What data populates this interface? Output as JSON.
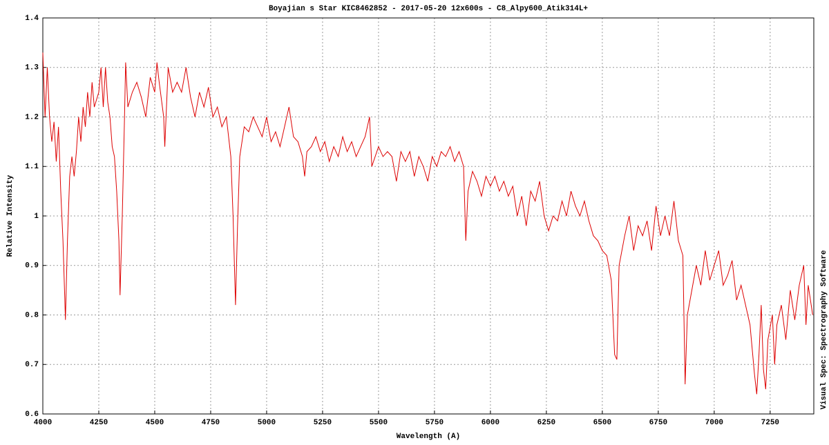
{
  "chart_data": {
    "type": "line",
    "title": "Boyajian s Star  KIC8462852 - 2017-05-20 12x600s - C8_Alpy600_Atik314L+",
    "x_label": "Wavelength (A)",
    "y_label": "Relative Intensity",
    "side_note": "Visual Spec: Spectrography Software",
    "color": "#dd0000",
    "grid": true,
    "xlim": [
      4000,
      7445
    ],
    "ylim": [
      0.6,
      1.4
    ],
    "xticks": [
      4000,
      4250,
      4500,
      4750,
      5000,
      5250,
      5500,
      5750,
      6000,
      6250,
      6500,
      6750,
      7000,
      7250
    ],
    "yticks": [
      0.6,
      0.7,
      0.8,
      0.9,
      1,
      1.1,
      1.2,
      1.3,
      1.4
    ],
    "x": [
      4000,
      4010,
      4020,
      4030,
      4040,
      4050,
      4060,
      4070,
      4080,
      4090,
      4101,
      4110,
      4120,
      4130,
      4140,
      4150,
      4160,
      4170,
      4180,
      4190,
      4200,
      4210,
      4220,
      4230,
      4250,
      4260,
      4270,
      4280,
      4290,
      4300,
      4310,
      4320,
      4330,
      4340,
      4345,
      4355,
      4365,
      4370,
      4380,
      4400,
      4420,
      4440,
      4460,
      4480,
      4500,
      4510,
      4520,
      4540,
      4545,
      4560,
      4580,
      4600,
      4620,
      4640,
      4660,
      4680,
      4700,
      4720,
      4740,
      4760,
      4780,
      4800,
      4820,
      4840,
      4850,
      4861,
      4870,
      4880,
      4900,
      4920,
      4940,
      4960,
      4980,
      5000,
      5020,
      5040,
      5060,
      5080,
      5100,
      5120,
      5140,
      5160,
      5170,
      5180,
      5200,
      5220,
      5240,
      5260,
      5280,
      5300,
      5320,
      5340,
      5360,
      5380,
      5400,
      5420,
      5440,
      5460,
      5470,
      5500,
      5520,
      5540,
      5560,
      5580,
      5600,
      5620,
      5640,
      5660,
      5680,
      5700,
      5720,
      5740,
      5760,
      5780,
      5800,
      5820,
      5840,
      5860,
      5880,
      5890,
      5900,
      5920,
      5940,
      5960,
      5980,
      6000,
      6020,
      6040,
      6060,
      6080,
      6100,
      6120,
      6140,
      6160,
      6180,
      6200,
      6220,
      6240,
      6260,
      6280,
      6300,
      6320,
      6340,
      6360,
      6380,
      6400,
      6420,
      6440,
      6460,
      6480,
      6500,
      6520,
      6540,
      6555,
      6565,
      6575,
      6600,
      6620,
      6640,
      6660,
      6680,
      6700,
      6720,
      6740,
      6760,
      6780,
      6800,
      6820,
      6840,
      6860,
      6870,
      6880,
      6900,
      6920,
      6940,
      6960,
      6980,
      7000,
      7020,
      7040,
      7060,
      7080,
      7100,
      7120,
      7140,
      7160,
      7180,
      7190,
      7200,
      7210,
      7220,
      7230,
      7240,
      7260,
      7270,
      7280,
      7300,
      7320,
      7340,
      7360,
      7380,
      7400,
      7410,
      7420,
      7440
    ],
    "values": [
      1.33,
      1.2,
      1.3,
      1.2,
      1.15,
      1.19,
      1.11,
      1.18,
      1.05,
      0.95,
      0.79,
      0.95,
      1.08,
      1.12,
      1.08,
      1.13,
      1.2,
      1.15,
      1.22,
      1.18,
      1.25,
      1.2,
      1.27,
      1.22,
      1.25,
      1.3,
      1.22,
      1.3,
      1.23,
      1.2,
      1.14,
      1.12,
      1.05,
      0.95,
      0.84,
      1.0,
      1.2,
      1.31,
      1.22,
      1.25,
      1.27,
      1.24,
      1.2,
      1.28,
      1.25,
      1.31,
      1.27,
      1.2,
      1.14,
      1.3,
      1.25,
      1.27,
      1.25,
      1.3,
      1.24,
      1.2,
      1.25,
      1.22,
      1.26,
      1.2,
      1.22,
      1.18,
      1.2,
      1.12,
      1.0,
      0.82,
      0.98,
      1.12,
      1.18,
      1.17,
      1.2,
      1.18,
      1.16,
      1.2,
      1.15,
      1.17,
      1.14,
      1.18,
      1.22,
      1.16,
      1.15,
      1.12,
      1.08,
      1.13,
      1.14,
      1.16,
      1.13,
      1.15,
      1.11,
      1.14,
      1.12,
      1.16,
      1.13,
      1.15,
      1.12,
      1.14,
      1.16,
      1.2,
      1.1,
      1.14,
      1.12,
      1.13,
      1.12,
      1.07,
      1.13,
      1.11,
      1.13,
      1.08,
      1.12,
      1.1,
      1.07,
      1.12,
      1.1,
      1.13,
      1.12,
      1.14,
      1.11,
      1.13,
      1.1,
      0.95,
      1.05,
      1.09,
      1.07,
      1.04,
      1.08,
      1.06,
      1.08,
      1.05,
      1.07,
      1.04,
      1.06,
      1.0,
      1.04,
      0.98,
      1.05,
      1.03,
      1.07,
      1.0,
      0.97,
      1.0,
      0.99,
      1.03,
      1.0,
      1.05,
      1.02,
      1.0,
      1.03,
      0.99,
      0.96,
      0.95,
      0.93,
      0.92,
      0.87,
      0.72,
      0.71,
      0.9,
      0.96,
      1.0,
      0.93,
      0.98,
      0.96,
      0.99,
      0.93,
      1.02,
      0.96,
      1.0,
      0.96,
      1.03,
      0.95,
      0.92,
      0.66,
      0.8,
      0.85,
      0.9,
      0.86,
      0.93,
      0.87,
      0.9,
      0.93,
      0.86,
      0.88,
      0.91,
      0.83,
      0.86,
      0.82,
      0.78,
      0.68,
      0.64,
      0.72,
      0.82,
      0.69,
      0.65,
      0.75,
      0.8,
      0.7,
      0.78,
      0.82,
      0.75,
      0.85,
      0.79,
      0.86,
      0.9,
      0.78,
      0.86,
      0.8
    ]
  }
}
